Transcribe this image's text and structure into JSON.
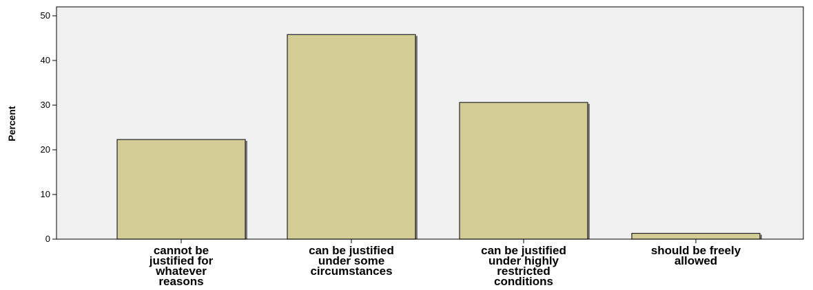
{
  "chart_data": {
    "type": "bar",
    "categories": [
      [
        "cannot be",
        "justified for",
        "whatever",
        "reasons"
      ],
      [
        "can be justified",
        "under some",
        "circumstances"
      ],
      [
        "can be justified",
        "under highly",
        "restricted",
        "conditions"
      ],
      [
        "should be freely",
        "allowed"
      ]
    ],
    "values": [
      22.3,
      45.8,
      30.6,
      1.3
    ],
    "xlabel": "",
    "ylabel": "Percent",
    "ylim": [
      0,
      52
    ],
    "yticks": [
      0,
      10,
      20,
      30,
      40,
      50
    ],
    "grid": false,
    "colors": {
      "bar_fill": "#d3cd95",
      "bar_stroke": "#222222",
      "bar_shadow": "#7a7a7a",
      "plot_background": "#f0f0f0",
      "axis": "#000000"
    }
  }
}
